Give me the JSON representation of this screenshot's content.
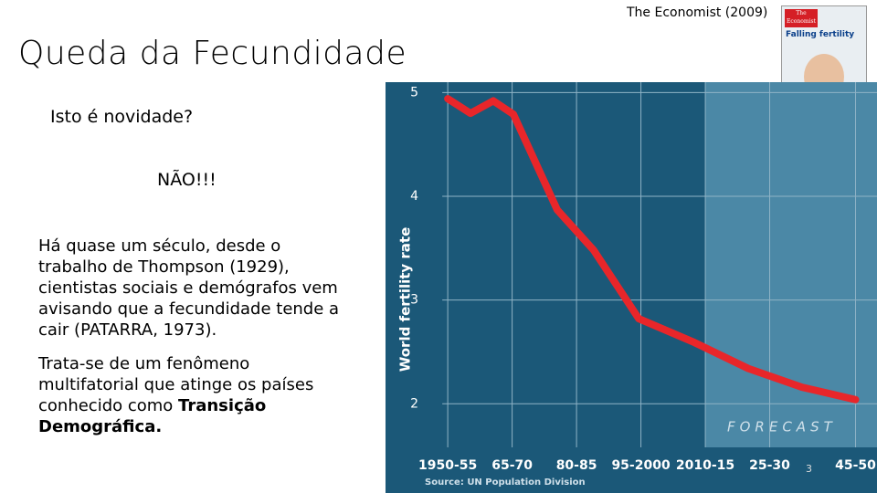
{
  "slide": {
    "title": "Queda da Fecundidade",
    "credit": "The Economist (2009)",
    "question": "Isto é novidade?",
    "answer": "NÃO!!!",
    "paragraph1": "Há quase um século, desde o trabalho de Thompson (1929), cientistas sociais e demógrafos vem avisando que a fecundidade tende a cair (PATARRA, 1973).",
    "paragraph2": "Trata-se de um fenômeno multifatorial que atinge os países conhecido como ",
    "paragraph2_bold": "Transição Demográfica.",
    "page_number": "3",
    "cover": {
      "masthead": "The Economist",
      "headline": "Falling fertility"
    }
  },
  "chart_data": {
    "type": "line",
    "y_label": "World fertility rate",
    "source": "Source: UN Population Division",
    "forecast_label": "FORECAST",
    "forecast_from": 2012.5,
    "xlim": [
      1938,
      2052.5
    ],
    "ylim": [
      1.58,
      5.1
    ],
    "xticks": [
      {
        "value": 1952.5,
        "label": "1950-55"
      },
      {
        "value": 1967.5,
        "label": "65-70"
      },
      {
        "value": 1982.5,
        "label": "80-85"
      },
      {
        "value": 1997.5,
        "label": "95-2000"
      },
      {
        "value": 2012.5,
        "label": "2010-15"
      },
      {
        "value": 2027.5,
        "label": "25-30"
      },
      {
        "value": 2047.5,
        "label": "45-50"
      }
    ],
    "yticks": [
      2,
      3,
      4,
      5
    ],
    "grid": true,
    "series": [
      {
        "color": "#e8262a",
        "x": [
          1952.5,
          1957.8,
          1963.1,
          1967.8,
          1978,
          1986.5,
          1997,
          2010,
          2022.5,
          2035,
          2047.5
        ],
        "values": [
          4.94,
          4.8,
          4.92,
          4.79,
          3.87,
          3.48,
          2.82,
          2.59,
          2.34,
          2.16,
          2.04
        ]
      }
    ]
  }
}
